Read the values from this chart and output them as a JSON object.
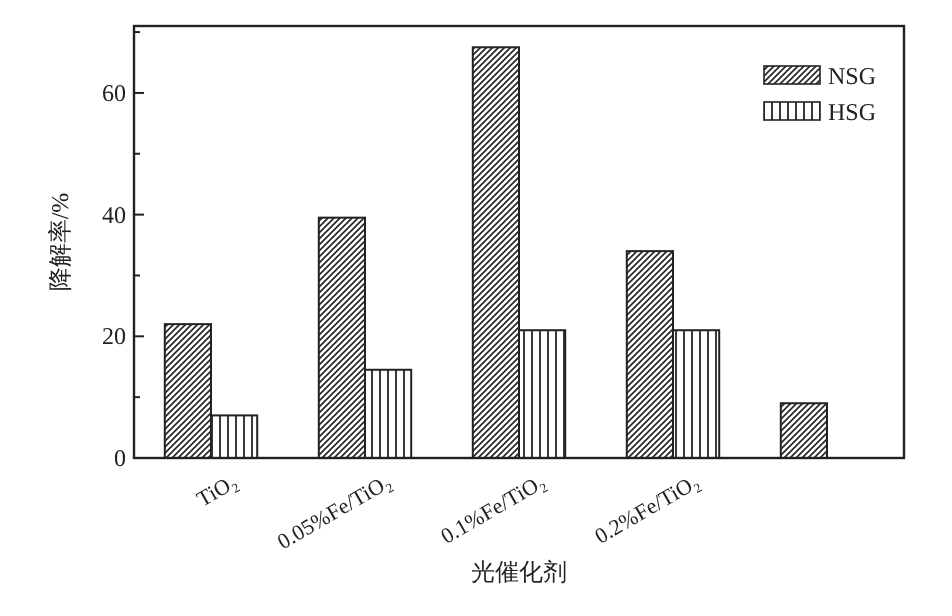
{
  "chart_data": {
    "type": "bar",
    "xlabel": "光催化剂",
    "ylabel": "降解率/%",
    "categories": [
      "TiO₂",
      "0.05%Fe/TiO₂",
      "0.1%Fe/TiO₂",
      "0.2%Fe/TiO₂",
      null
    ],
    "series": [
      {
        "name": "NSG",
        "color": "#222222",
        "values": [
          22,
          39.5,
          67.5,
          34,
          9
        ]
      },
      {
        "name": "HSG",
        "color": "#222222",
        "values": [
          7,
          14.5,
          21,
          21,
          null
        ]
      }
    ],
    "ylim": [
      0,
      71
    ],
    "yticks": [
      0,
      {
        "value": 10,
        "label": null
      },
      20,
      {
        "value": 30,
        "label": null
      },
      40,
      {
        "value": 50,
        "label": null
      },
      60,
      {
        "value": 70,
        "label": null
      }
    ],
    "legend": "top right",
    "grid": false
  }
}
